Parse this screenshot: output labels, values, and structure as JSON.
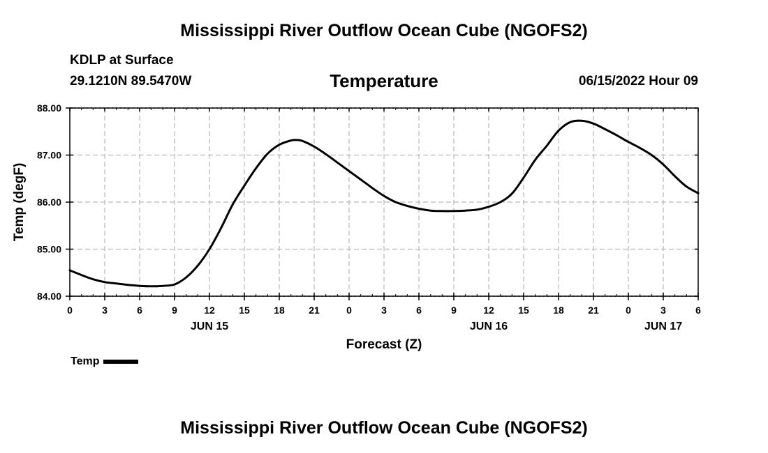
{
  "header": {
    "title": "Mississippi River Outflow Ocean Cube (NGOFS2)",
    "station": "KDLP at Surface",
    "coords": "29.1210N  89.5470W",
    "chart_title": "Temperature",
    "datetime": "06/15/2022 Hour 09"
  },
  "footer": {
    "title": "Mississippi River Outflow Ocean Cube (NGOFS2)"
  },
  "legend": {
    "label": "Temp"
  },
  "chart_data": {
    "type": "line",
    "title": "Temperature",
    "xlabel": "Forecast (Z)",
    "ylabel": "Temp (degF)",
    "xlim": [
      0,
      54
    ],
    "ylim": [
      84.0,
      88.0
    ],
    "grid": true,
    "legend_position": "bottom-left",
    "y_ticks": [
      "84.00",
      "85.00",
      "86.00",
      "87.00",
      "88.00"
    ],
    "x_ticks": [
      "0",
      "3",
      "6",
      "9",
      "12",
      "15",
      "18",
      "21",
      "0",
      "3",
      "6",
      "9",
      "12",
      "15",
      "18",
      "21",
      "0",
      "3",
      "6"
    ],
    "date_labels": [
      {
        "label": "JUN 15",
        "hour": 12
      },
      {
        "label": "JUN 16",
        "hour": 36
      },
      {
        "label": "JUN 17",
        "hour": 51
      }
    ],
    "series": [
      {
        "name": "Temp",
        "color": "#000000",
        "x": [
          0,
          1,
          2,
          3,
          4,
          5,
          6,
          7,
          8,
          9,
          10,
          11,
          12,
          13,
          14,
          15,
          16,
          17,
          18,
          19,
          19.5,
          20,
          21,
          22,
          23,
          24,
          25,
          26,
          27,
          28,
          29,
          30,
          31,
          32,
          33,
          34,
          35,
          36,
          37,
          38,
          39,
          40,
          41,
          42,
          43,
          44,
          45,
          46,
          47,
          48,
          49,
          50,
          51,
          52,
          53,
          54
        ],
        "y": [
          84.55,
          84.45,
          84.36,
          84.3,
          84.27,
          84.24,
          84.22,
          84.21,
          84.22,
          84.25,
          84.4,
          84.65,
          85.0,
          85.45,
          85.95,
          86.35,
          86.72,
          87.03,
          87.22,
          87.31,
          87.32,
          87.3,
          87.18,
          87.02,
          86.84,
          86.66,
          86.48,
          86.3,
          86.13,
          86.0,
          85.92,
          85.86,
          85.82,
          85.81,
          85.81,
          85.82,
          85.84,
          85.9,
          86.0,
          86.18,
          86.52,
          86.9,
          87.2,
          87.52,
          87.7,
          87.73,
          87.67,
          87.55,
          87.42,
          87.28,
          87.15,
          87.0,
          86.8,
          86.55,
          86.33,
          86.19
        ]
      }
    ]
  }
}
